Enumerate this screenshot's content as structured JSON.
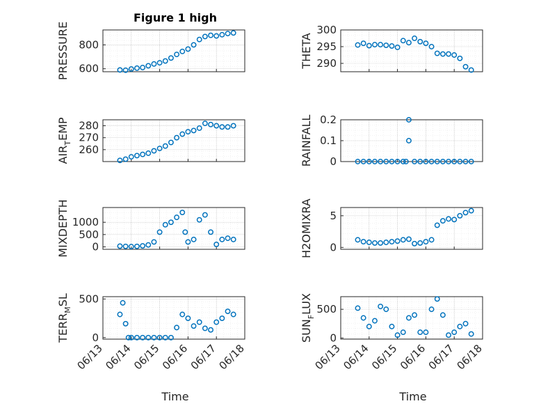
{
  "figure": {
    "title": "Figure 1 high",
    "xlabel": "Time",
    "x_tick_labels": [
      "06/13",
      "06/14",
      "06/15",
      "06/16",
      "06/17",
      "06/18"
    ],
    "marker_color": "#0072bd"
  },
  "chart_data": [
    {
      "type": "scatter",
      "ylabel_main": "PRESSURE",
      "ylabel_sub": "",
      "ylim": [
        575,
        925
      ],
      "yticks": [
        600,
        800
      ],
      "grid": true,
      "x_is_day_offset_from": "06/13",
      "x": [
        0.6,
        0.8,
        1.0,
        1.2,
        1.4,
        1.6,
        1.8,
        2.0,
        2.2,
        2.4,
        2.6,
        2.8,
        3.0,
        3.2,
        3.4,
        3.6,
        3.8,
        4.0,
        4.2,
        4.4,
        4.6
      ],
      "y": [
        590,
        588,
        598,
        605,
        610,
        625,
        640,
        650,
        665,
        690,
        720,
        745,
        765,
        800,
        845,
        870,
        880,
        875,
        885,
        895,
        900
      ]
    },
    {
      "type": "scatter",
      "ylabel_main": "THETA",
      "ylabel_sub": "",
      "ylim": [
        287.5,
        300
      ],
      "yticks": [
        290,
        295,
        300
      ],
      "grid": true,
      "x": [
        0.6,
        0.8,
        1.0,
        1.2,
        1.4,
        1.6,
        1.8,
        2.0,
        2.2,
        2.4,
        2.6,
        2.8,
        3.0,
        3.2,
        3.4,
        3.6,
        3.8,
        4.0,
        4.2,
        4.4,
        4.6
      ],
      "y": [
        295.5,
        296.0,
        295.3,
        295.6,
        295.6,
        295.4,
        295.2,
        294.8,
        296.8,
        296.2,
        297.5,
        296.5,
        296.0,
        295.0,
        293.0,
        292.8,
        292.8,
        292.5,
        291.5,
        289.0,
        288.0
      ]
    },
    {
      "type": "scatter",
      "ylabel_main": "AIR",
      "ylabel_sub": "T",
      "ylabel_tail": "EMP",
      "ylim": [
        250,
        285
      ],
      "yticks": [
        260,
        270,
        280
      ],
      "grid": true,
      "x": [
        0.6,
        0.8,
        1.0,
        1.2,
        1.4,
        1.6,
        1.8,
        2.0,
        2.2,
        2.4,
        2.6,
        2.8,
        3.0,
        3.2,
        3.4,
        3.6,
        3.8,
        4.0,
        4.2,
        4.4,
        4.6
      ],
      "y": [
        251,
        252,
        254,
        255,
        256,
        257,
        259,
        261,
        263,
        266,
        270,
        273,
        275,
        276,
        278,
        282,
        281,
        280,
        279,
        279,
        280
      ]
    },
    {
      "type": "scatter",
      "ylabel_main": "RAINFALL",
      "ylabel_sub": "",
      "ylim": [
        0,
        0.2
      ],
      "yticks": [
        0,
        0.1,
        0.2
      ],
      "grid": true,
      "x": [
        0.6,
        0.8,
        1.0,
        1.2,
        1.4,
        1.6,
        1.8,
        2.0,
        2.2,
        2.3,
        2.4,
        2.4,
        2.6,
        2.8,
        3.0,
        3.2,
        3.4,
        3.6,
        3.8,
        4.0,
        4.2,
        4.4,
        4.6
      ],
      "y": [
        0,
        0,
        0,
        0,
        0,
        0,
        0,
        0,
        0,
        0,
        0.1,
        0.2,
        0,
        0,
        0,
        0,
        0,
        0,
        0,
        0,
        0,
        0,
        0
      ]
    },
    {
      "type": "scatter",
      "ylabel_main": "MIXDEPTH",
      "ylabel_sub": "",
      "ylim": [
        -100,
        1600
      ],
      "yticks": [
        0,
        500,
        1000
      ],
      "grid": true,
      "x": [
        0.6,
        0.8,
        1.0,
        1.2,
        1.4,
        1.6,
        1.8,
        2.0,
        2.2,
        2.4,
        2.6,
        2.8,
        2.9,
        3.0,
        3.2,
        3.4,
        3.6,
        3.8,
        4.0,
        4.2,
        4.4,
        4.6
      ],
      "y": [
        30,
        20,
        10,
        20,
        40,
        80,
        200,
        600,
        900,
        1000,
        1200,
        1400,
        600,
        200,
        300,
        1100,
        1300,
        600,
        100,
        300,
        350,
        300
      ]
    },
    {
      "type": "scatter",
      "ylabel_main": "H2OMIXRA",
      "ylabel_sub": "",
      "ylim": [
        -0.3,
        6.3
      ],
      "yticks": [
        0,
        5
      ],
      "grid": true,
      "x": [
        0.6,
        0.8,
        1.0,
        1.2,
        1.4,
        1.6,
        1.8,
        2.0,
        2.2,
        2.4,
        2.6,
        2.8,
        3.0,
        3.2,
        3.4,
        3.6,
        3.8,
        4.0,
        4.2,
        4.4,
        4.6
      ],
      "y": [
        1.2,
        0.9,
        0.8,
        0.7,
        0.7,
        0.8,
        0.9,
        1.0,
        1.2,
        1.3,
        0.6,
        0.7,
        0.9,
        1.2,
        3.5,
        4.2,
        4.5,
        4.4,
        5.0,
        5.5,
        5.8
      ]
    },
    {
      "type": "scatter",
      "ylabel_main": "TERR",
      "ylabel_sub": "M",
      "ylabel_tail": "SL",
      "ylim": [
        -20,
        530
      ],
      "yticks": [
        0,
        500
      ],
      "grid": true,
      "x": [
        0.6,
        0.7,
        0.8,
        0.9,
        1.0,
        1.2,
        1.4,
        1.6,
        1.8,
        2.0,
        2.2,
        2.4,
        2.6,
        2.8,
        3.0,
        3.2,
        3.4,
        3.6,
        3.8,
        4.0,
        4.2,
        4.4,
        4.6
      ],
      "y": [
        300,
        450,
        180,
        0,
        0,
        0,
        0,
        0,
        0,
        0,
        0,
        0,
        130,
        300,
        250,
        150,
        200,
        120,
        100,
        200,
        250,
        340,
        300
      ]
    },
    {
      "type": "scatter",
      "ylabel_main": "SUN",
      "ylabel_sub": "F",
      "ylabel_tail": "LUX",
      "ylim": [
        -20,
        720
      ],
      "yticks": [
        0,
        500
      ],
      "grid": true,
      "x": [
        0.6,
        0.8,
        1.0,
        1.2,
        1.4,
        1.6,
        1.8,
        2.0,
        2.2,
        2.4,
        2.6,
        2.8,
        3.0,
        3.2,
        3.4,
        3.6,
        3.8,
        4.0,
        4.2,
        4.4,
        4.6
      ],
      "y": [
        520,
        350,
        200,
        300,
        550,
        500,
        200,
        50,
        100,
        350,
        400,
        100,
        100,
        500,
        680,
        400,
        50,
        100,
        200,
        250,
        70
      ]
    }
  ]
}
